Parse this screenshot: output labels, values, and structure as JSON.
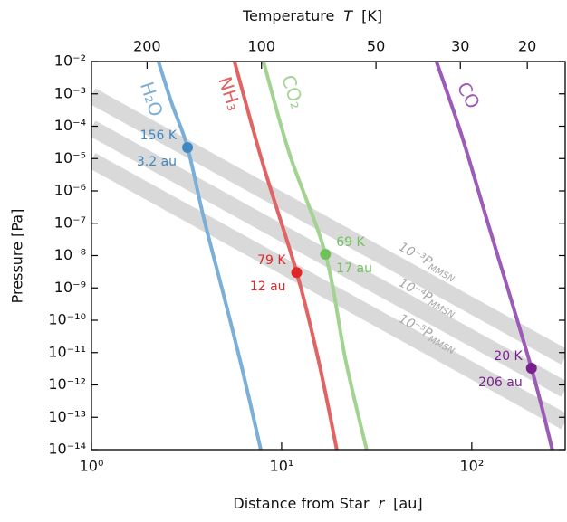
{
  "chart_data": {
    "type": "line",
    "title_parts": [
      "Temperature",
      "T",
      "[K]"
    ],
    "xlabel_parts": [
      "Distance from Star",
      "r",
      "[au]"
    ],
    "ylabel": "Pressure  [Pa]",
    "xscale": "log",
    "yscale": "log",
    "xlim": [
      1,
      310
    ],
    "ylim": [
      1e-14,
      0.01
    ],
    "xticks": [
      {
        "value": 1,
        "label": "10⁰"
      },
      {
        "value": 10,
        "label": "10¹"
      },
      {
        "value": 100,
        "label": "10²"
      }
    ],
    "yticks": [
      {
        "value": 0.01,
        "label": "10⁻²"
      },
      {
        "value": 0.001,
        "label": "10⁻³"
      },
      {
        "value": 0.0001,
        "label": "10⁻⁴"
      },
      {
        "value": 1e-05,
        "label": "10⁻⁵"
      },
      {
        "value": 1e-06,
        "label": "10⁻⁶"
      },
      {
        "value": 1e-07,
        "label": "10⁻⁷"
      },
      {
        "value": 1e-08,
        "label": "10⁻⁸"
      },
      {
        "value": 1e-09,
        "label": "10⁻⁹"
      },
      {
        "value": 1e-10,
        "label": "10⁻¹⁰"
      },
      {
        "value": 1e-11,
        "label": "10⁻¹¹"
      },
      {
        "value": 1e-12,
        "label": "10⁻¹²"
      },
      {
        "value": 1e-13,
        "label": "10⁻¹³"
      },
      {
        "value": 1e-14,
        "label": "10⁻¹⁴"
      }
    ],
    "x2scale": "log",
    "x2lim": [
      280,
      15.9
    ],
    "x2ticks": [
      200,
      100,
      50,
      30,
      20
    ],
    "bands": {
      "color": "#d9d9d9",
      "x": [
        1,
        310
      ],
      "series": [
        {
          "label": "10⁻³P",
          "subscript": "MMSN",
          "values": [
            0.00089,
            7.1e-12
          ]
        },
        {
          "label": "10⁻⁴P",
          "subscript": "MMSN",
          "values": [
            8.9e-05,
            7.1e-13
          ]
        },
        {
          "label": "10⁻⁵P",
          "subscript": "MMSN",
          "values": [
            8.9e-06,
            7.1e-14
          ]
        }
      ]
    },
    "series": [
      {
        "name": "H₂O",
        "color": "#7bafd8",
        "dot_color": "#3f88c2",
        "x": [
          2.25,
          2.65,
          3.2,
          3.89,
          5.01,
          6.24,
          7.77
        ],
        "values": [
          0.01,
          0.00049,
          2.2e-05,
          1.5e-07,
          4.7e-10,
          2.7e-12,
          1e-14
        ],
        "point": {
          "x": 3.2,
          "y": 2.2e-05,
          "label": "156 K",
          "x_label": "3.2 au"
        }
      },
      {
        "name": "NH₃",
        "color": "#e06464",
        "dot_color": "#e02626",
        "x": [
          5.65,
          7.94,
          12,
          15.7,
          19.5
        ],
        "values": [
          0.01,
          7.4e-06,
          3e-09,
          5.1e-12,
          1e-14
        ],
        "point": {
          "x": 12,
          "y": 3e-09,
          "label": "79 K",
          "x_label": "12 au"
        }
      },
      {
        "name": "CO₂",
        "color": "#a3d391",
        "dot_color": "#6fc15c",
        "x": [
          8.03,
          11.0,
          17,
          21.8,
          28
        ],
        "values": [
          0.01,
          1.4e-05,
          1.1e-08,
          5.1e-12,
          1e-14
        ],
        "point": {
          "x": 17,
          "y": 1.1e-08,
          "label": "69 K",
          "x_label": "17 au"
        }
      },
      {
        "name": "CO",
        "color": "#9d5bb8",
        "dot_color": "#7a1f8e",
        "x": [
          65.2,
          88.6,
          123,
          206,
          265
        ],
        "values": [
          0.01,
          5.1e-05,
          8.1e-08,
          3.3e-12,
          1e-14
        ],
        "point": {
          "x": 206,
          "y": 3.3e-12,
          "label": "20 K",
          "x_label": "206 au"
        }
      }
    ]
  }
}
